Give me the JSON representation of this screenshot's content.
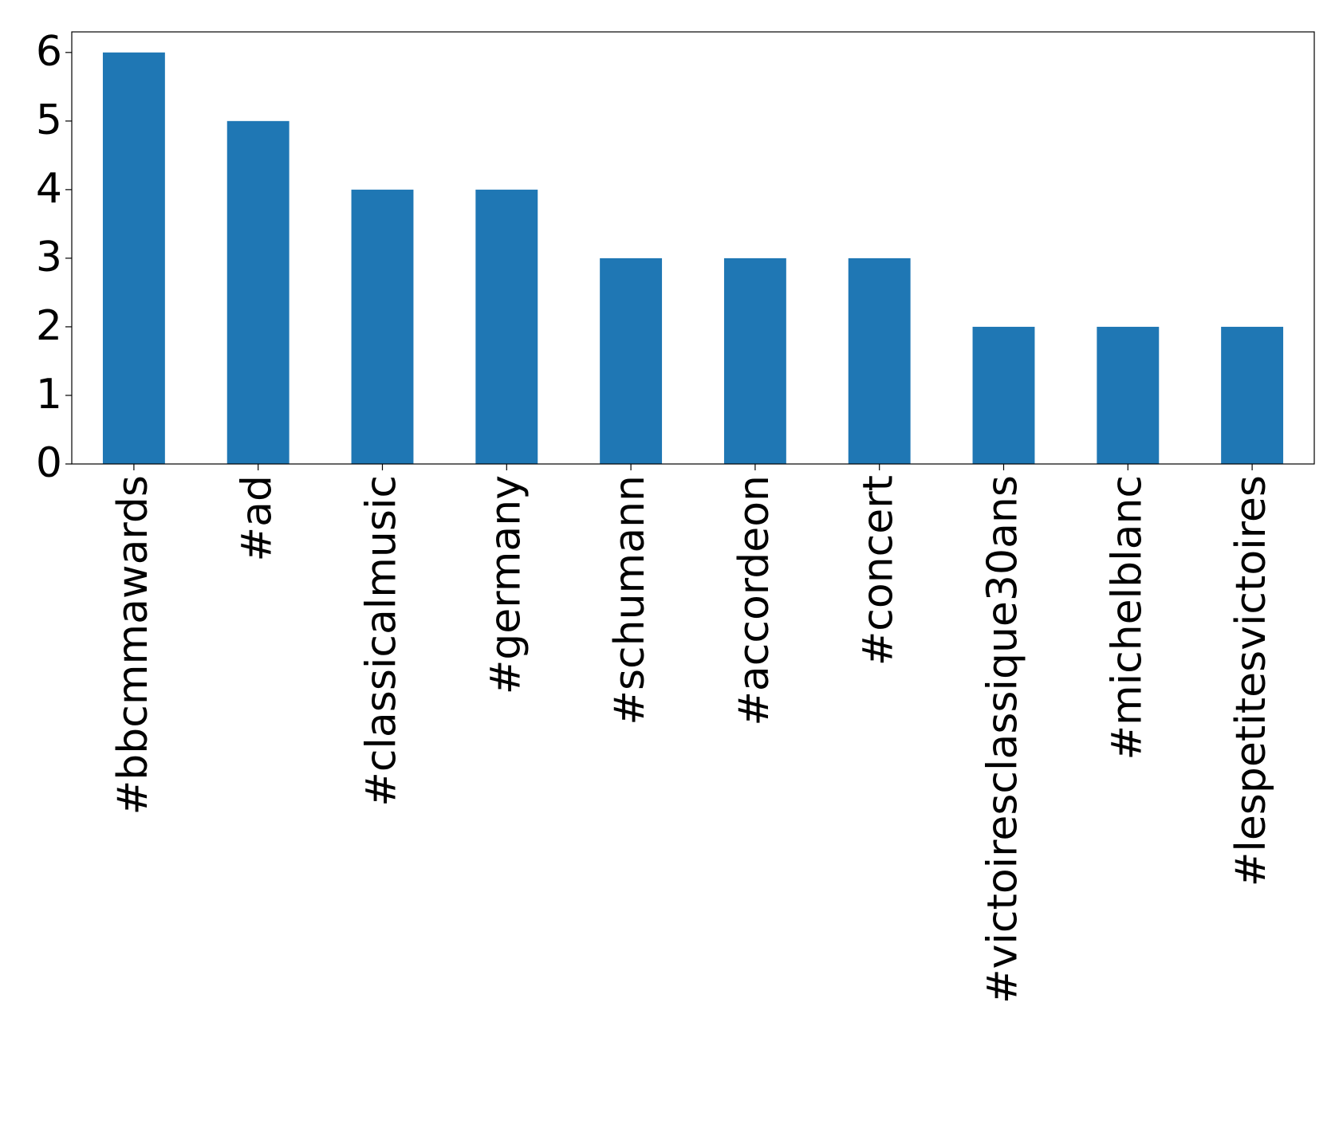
{
  "chart_data": {
    "type": "bar",
    "categories": [
      "#bbcmmawards",
      "#ad",
      "#classicalmusic",
      "#germany",
      "#schumann",
      "#accordeon",
      "#concert",
      "#victoiresclassique30ans",
      "#michelblanc",
      "#lespetitesvictoires"
    ],
    "values": [
      6,
      5,
      4,
      4,
      3,
      3,
      3,
      2,
      2,
      2
    ],
    "color": "#1f77b4",
    "ylim": [
      0,
      6.3
    ],
    "yticks": [
      0,
      1,
      2,
      3,
      4,
      5,
      6
    ],
    "grid": false
  }
}
